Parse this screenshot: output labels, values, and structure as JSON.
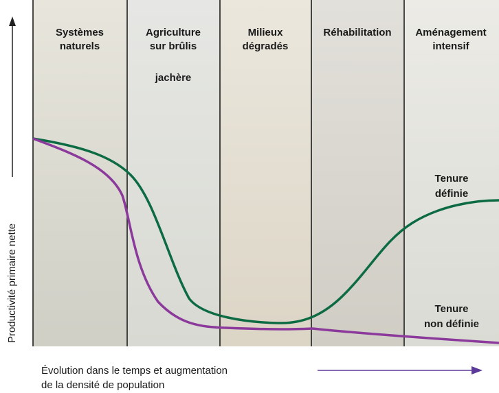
{
  "panels": [
    {
      "title": [
        "Systèmes",
        "naturels"
      ]
    },
    {
      "title": [
        "Agriculture",
        "sur brûlis"
      ],
      "note": "jachère"
    },
    {
      "title": [
        "Milieux",
        "dégradés"
      ]
    },
    {
      "title": [
        "Réhabilitation"
      ]
    },
    {
      "title": [
        "Aménagement",
        "intensif"
      ]
    }
  ],
  "curves": [
    {
      "label": [
        "Tenure",
        "définie"
      ]
    },
    {
      "label": [
        "Tenure",
        "non définie"
      ]
    }
  ],
  "y_axis_label": "Productivité primaire nette",
  "x_axis_label": [
    "Évolution dans le temps et augmentation",
    "de la densité de population"
  ]
}
